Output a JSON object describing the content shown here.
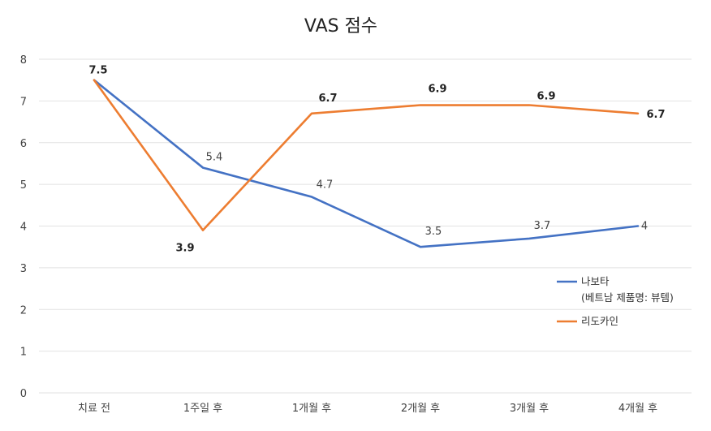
{
  "chart_data": {
    "type": "line",
    "title": "VAS 점수",
    "xlabel": "",
    "ylabel": "",
    "ylim": [
      0,
      8
    ],
    "yticks": [
      "0",
      "1",
      "2",
      "3",
      "4",
      "5",
      "6",
      "7",
      "8"
    ],
    "grid": true,
    "legend_position": "right",
    "categories": [
      "치료 전",
      "1주일 후",
      "1개월 후",
      "2개월 후",
      "3개월 후",
      "4개월 후"
    ],
    "series": [
      {
        "name": "나보타",
        "name_line2": "(베트남 제품명: 뷰템)",
        "color": "#4472c4",
        "values": [
          7.5,
          5.4,
          4.7,
          3.5,
          3.7,
          4
        ],
        "labels": [
          "7.5",
          "5.4",
          "4.7",
          "3.5",
          "3.7",
          "4"
        ]
      },
      {
        "name": "리도카인",
        "color": "#ed7d31",
        "values": [
          7.5,
          3.9,
          6.7,
          6.9,
          6.9,
          6.7
        ],
        "labels": [
          "7.5",
          "3.9",
          "6.7",
          "6.9",
          "6.9",
          "6.7"
        ]
      }
    ]
  }
}
